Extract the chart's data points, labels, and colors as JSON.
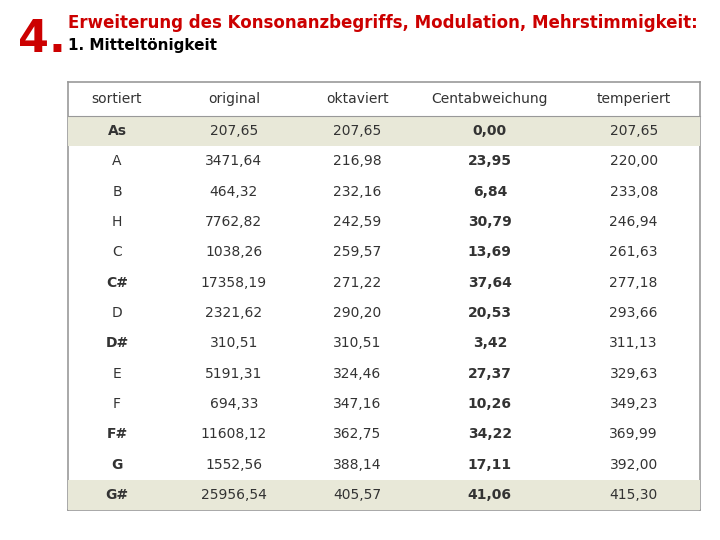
{
  "title_number": "4.",
  "title_line1": "Erweiterung des Konsonanzbegriffs, Modulation, Mehrstimmigkeit:",
  "title_line2": "1. Mitteltönigkeit",
  "columns": [
    "sortiert",
    "original",
    "oktaviert",
    "Centabweichung",
    "temperiert"
  ],
  "rows": [
    [
      "As",
      "207,65",
      "207,65",
      "0,00",
      "207,65"
    ],
    [
      "A",
      "3471,64",
      "216,98",
      "23,95",
      "220,00"
    ],
    [
      "B",
      "464,32",
      "232,16",
      "6,84",
      "233,08"
    ],
    [
      "H",
      "7762,82",
      "242,59",
      "30,79",
      "246,94"
    ],
    [
      "C",
      "1038,26",
      "259,57",
      "13,69",
      "261,63"
    ],
    [
      "C#",
      "17358,19",
      "271,22",
      "37,64",
      "277,18"
    ],
    [
      "D",
      "2321,62",
      "290,20",
      "20,53",
      "293,66"
    ],
    [
      "D#",
      "310,51",
      "310,51",
      "3,42",
      "311,13"
    ],
    [
      "E",
      "5191,31",
      "324,46",
      "27,37",
      "329,63"
    ],
    [
      "F",
      "694,33",
      "347,16",
      "10,26",
      "349,23"
    ],
    [
      "F#",
      "11608,12",
      "362,75",
      "34,22",
      "369,99"
    ],
    [
      "G",
      "1552,56",
      "388,14",
      "17,11",
      "392,00"
    ],
    [
      "G#",
      "25956,54",
      "405,57",
      "41,06",
      "415,30"
    ]
  ],
  "shaded_rows": [
    0,
    12
  ],
  "bold_sortiert_rows": [
    0,
    5,
    7,
    10,
    11,
    12
  ],
  "bold_col": 3,
  "shade_color": "#e8e8d8",
  "bg_color": "#ffffff",
  "title_color": "#cc0000",
  "title2_color": "#000000",
  "border_color": "#999999",
  "table_bg": "#ffffff",
  "font_size": 10,
  "header_font_size": 10,
  "title_font_size_1": 12,
  "title_font_size_2": 11,
  "num_size": 32
}
